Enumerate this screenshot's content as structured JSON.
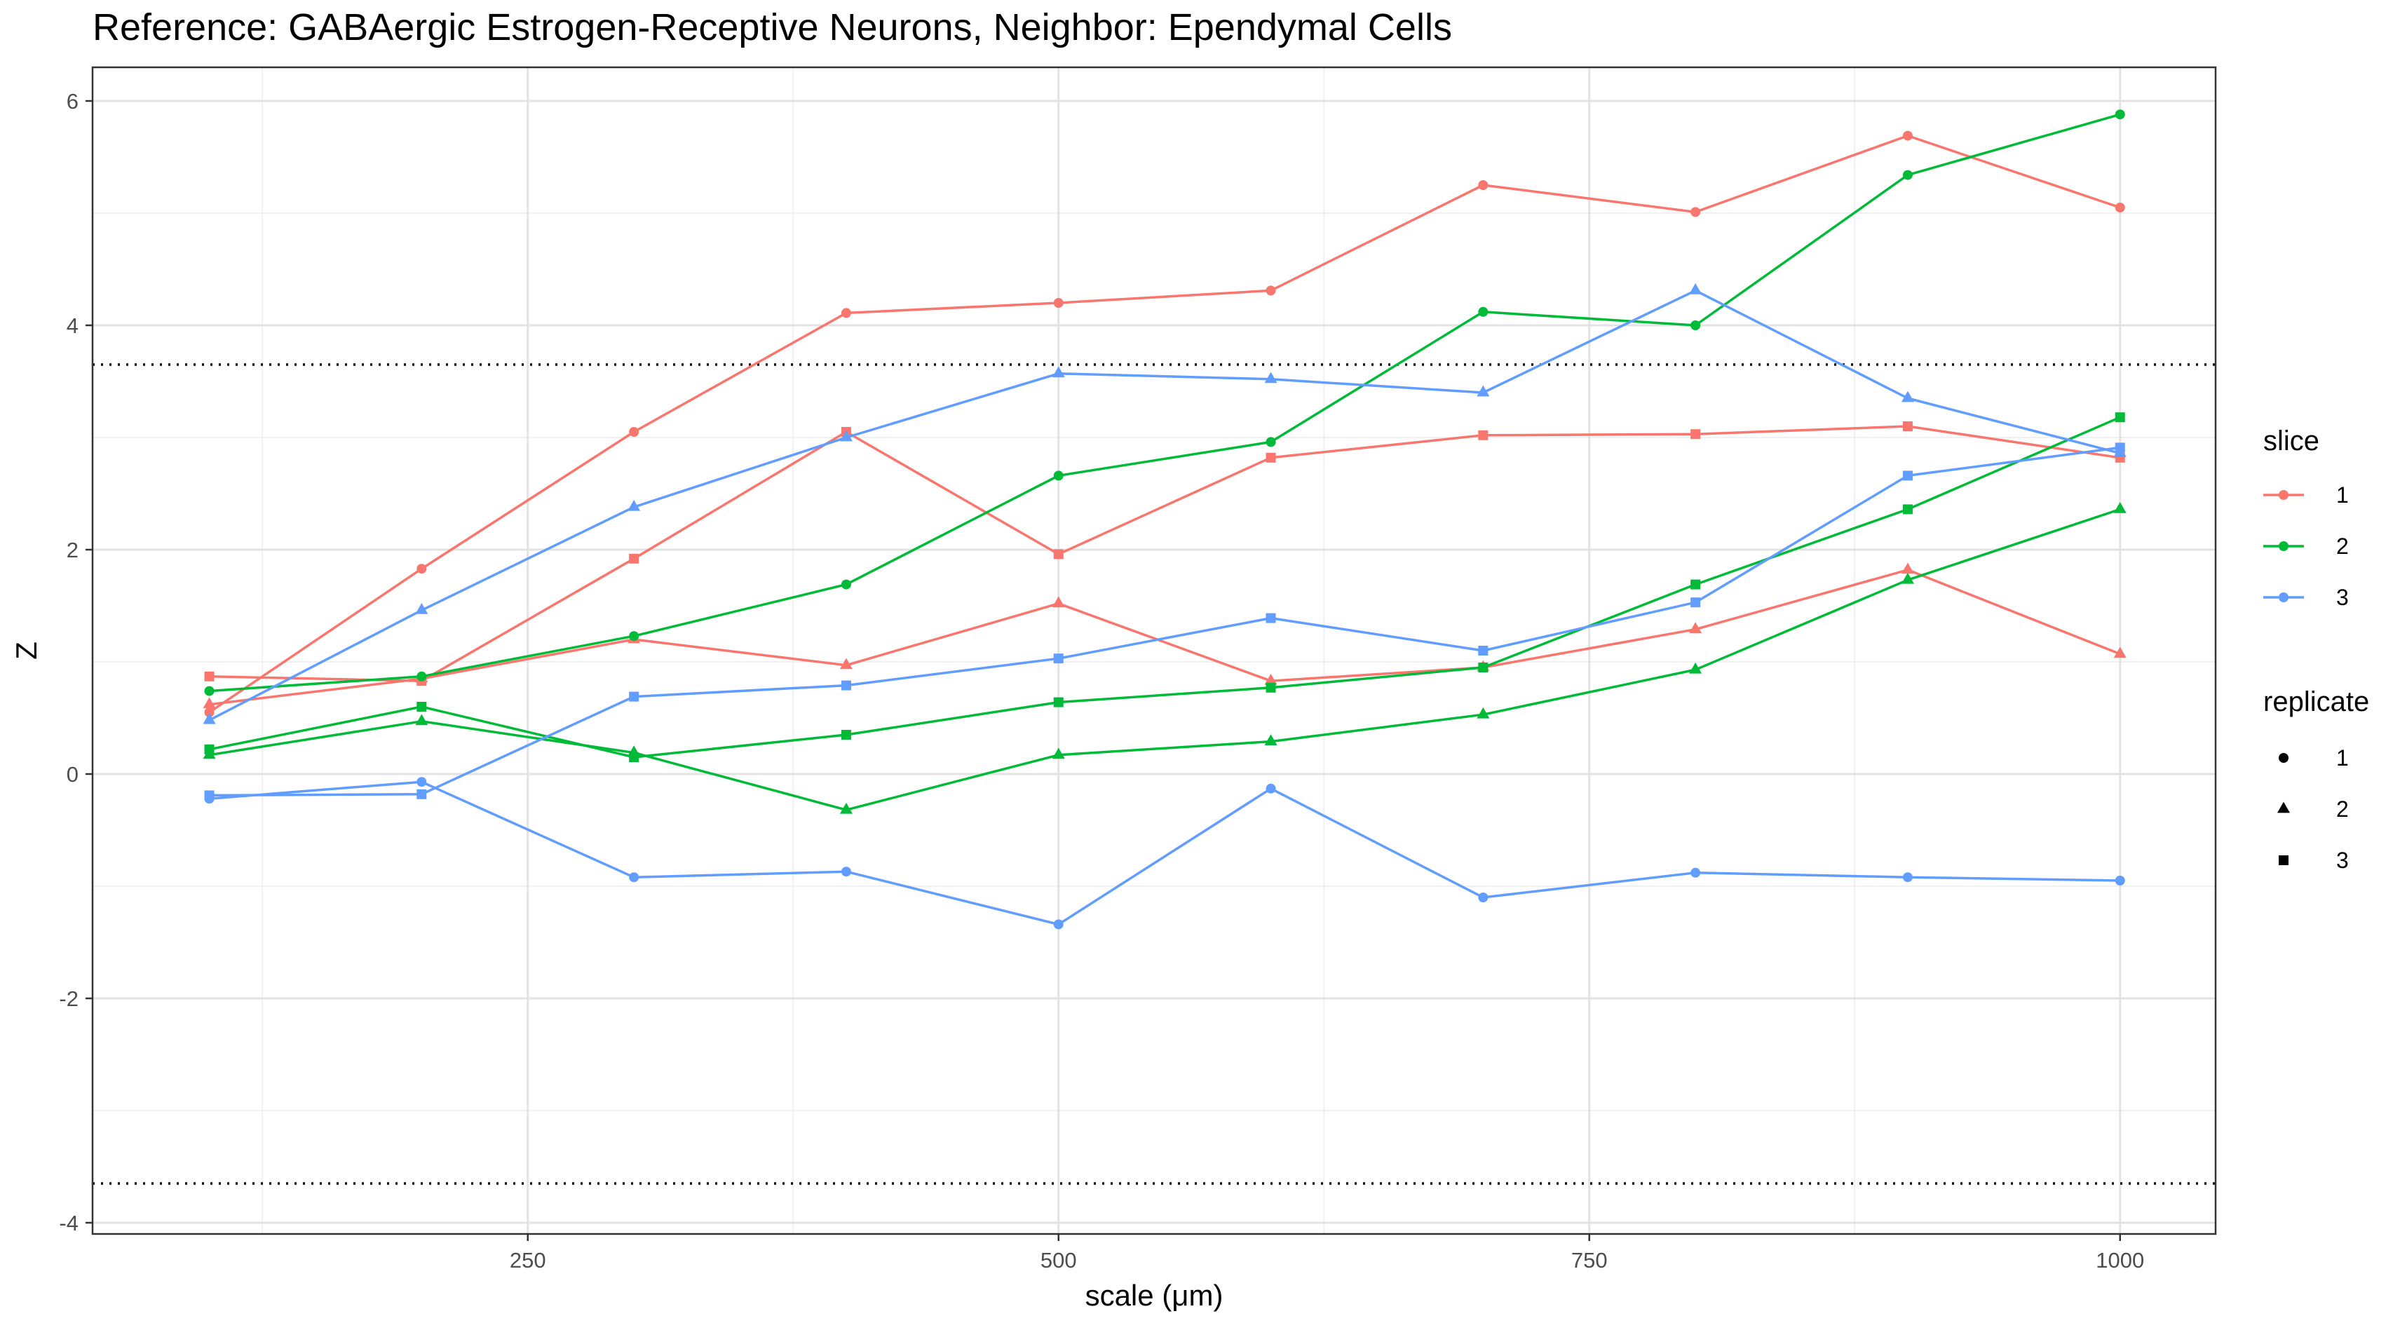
{
  "chart_data": {
    "type": "line",
    "title": "Reference: GABAergic Estrogen-Receptive Neurons, Neighbor: Ependymal Cells",
    "xlabel": "scale (μm)",
    "ylabel": "Z",
    "xlim": [
      45,
      1045
    ],
    "ylim": [
      -4.1,
      6.3
    ],
    "xticks": [
      250,
      500,
      750,
      1000
    ],
    "xtick_labels": [
      "250",
      "500",
      "750",
      "1000"
    ],
    "yticks": [
      -4,
      -2,
      0,
      2,
      4,
      6
    ],
    "ytick_labels": [
      "-4",
      "-2",
      "0",
      "2",
      "4",
      "6"
    ],
    "grid": true,
    "reference_lines": [
      3.65,
      -3.65
    ],
    "x": [
      100,
      200,
      300,
      400,
      500,
      600,
      700,
      800,
      900,
      1000
    ],
    "series": [
      {
        "slice": "1",
        "replicate": "1",
        "values": [
          0.55,
          1.83,
          3.05,
          4.11,
          4.2,
          4.31,
          5.25,
          5.01,
          5.69,
          5.05
        ]
      },
      {
        "slice": "1",
        "replicate": "2",
        "values": [
          0.62,
          0.85,
          1.2,
          0.97,
          1.52,
          0.83,
          0.95,
          1.29,
          1.82,
          1.07
        ]
      },
      {
        "slice": "1",
        "replicate": "3",
        "values": [
          0.87,
          0.83,
          1.92,
          3.05,
          1.96,
          2.82,
          3.02,
          3.03,
          3.1,
          2.82
        ]
      },
      {
        "slice": "2",
        "replicate": "1",
        "values": [
          0.74,
          0.87,
          1.23,
          1.69,
          2.66,
          2.96,
          4.12,
          4.0,
          5.34,
          5.88
        ]
      },
      {
        "slice": "2",
        "replicate": "2",
        "values": [
          0.17,
          0.47,
          0.19,
          -0.32,
          0.17,
          0.29,
          0.53,
          0.93,
          1.73,
          2.36
        ]
      },
      {
        "slice": "2",
        "replicate": "3",
        "values": [
          0.22,
          0.6,
          0.15,
          0.35,
          0.64,
          0.77,
          0.95,
          1.69,
          2.36,
          3.18
        ]
      },
      {
        "slice": "3",
        "replicate": "1",
        "values": [
          -0.22,
          -0.07,
          -0.92,
          -0.87,
          -1.34,
          -0.13,
          -1.1,
          -0.88,
          -0.92,
          -0.95
        ]
      },
      {
        "slice": "3",
        "replicate": "2",
        "values": [
          0.48,
          1.46,
          2.38,
          3.0,
          3.57,
          3.52,
          3.4,
          4.31,
          3.35,
          2.86
        ]
      },
      {
        "slice": "3",
        "replicate": "3",
        "values": [
          -0.19,
          -0.18,
          0.69,
          0.79,
          1.03,
          1.39,
          1.1,
          1.53,
          2.66,
          2.91
        ]
      }
    ],
    "legend": {
      "placement": "right",
      "slice": {
        "title": "slice",
        "entries": [
          "1",
          "2",
          "3"
        ]
      },
      "replicate": {
        "title": "replicate",
        "entries": [
          "1",
          "2",
          "3"
        ]
      }
    },
    "colors": {
      "1": "#F8766D",
      "2": "#00BA38",
      "3": "#619CFF"
    },
    "shapes": {
      "1": "circle",
      "2": "triangle",
      "3": "square"
    }
  }
}
